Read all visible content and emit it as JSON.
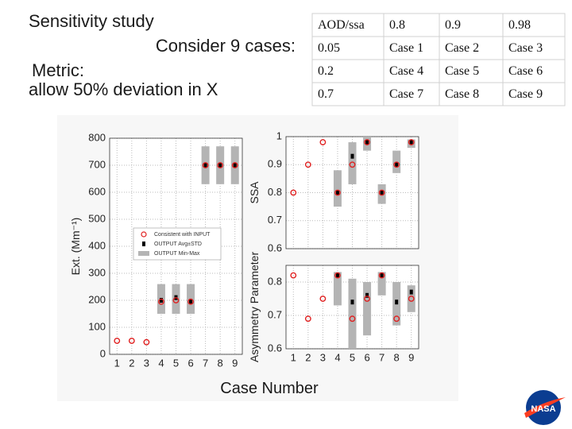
{
  "slide": {
    "title": "Sensitivity study",
    "subtitle": "Consider 9 cases:",
    "metric_label": "Metric:",
    "metric": "allow 50% deviation in X",
    "logo": "NASA"
  },
  "table": {
    "header": [
      "AOD/ssa",
      "0.8",
      "0.9",
      "0.98"
    ],
    "rows": [
      [
        "0.05",
        "Case 1",
        "Case 2",
        "Case 3"
      ],
      [
        "0.2",
        "Case 4",
        "Case 5",
        "Case 6"
      ],
      [
        "0.7",
        "Case 7",
        "Case 8",
        "Case 9"
      ]
    ]
  },
  "figure": {
    "xlabel": "Case Number"
  },
  "chart_data": [
    {
      "type": "box",
      "ylabel": "Ext. (Mm⁻¹)",
      "x": [
        1,
        2,
        3,
        4,
        5,
        6,
        7,
        8,
        9
      ],
      "xlim": [
        0.5,
        9.5
      ],
      "xticks": [
        1,
        2,
        3,
        4,
        5,
        6,
        7,
        8,
        9
      ],
      "ylim": [
        0,
        800
      ],
      "yticks": [
        0,
        100,
        200,
        300,
        400,
        500,
        600,
        700,
        800
      ],
      "grid": true,
      "legend": "center",
      "series": [
        {
          "name": "OUTPUT Min-Max",
          "color": "#b4b4b4",
          "low": [
            null,
            null,
            null,
            150,
            150,
            150,
            630,
            630,
            630
          ],
          "high": [
            null,
            null,
            null,
            260,
            260,
            260,
            770,
            770,
            770
          ]
        },
        {
          "name": "OUTPUT Avg±STD",
          "color": "#000000",
          "values": [
            null,
            null,
            null,
            200,
            210,
            195,
            700,
            700,
            700
          ]
        },
        {
          "name": "Consistent with INPUT",
          "color": "#e02020",
          "values": [
            50,
            50,
            45,
            195,
            200,
            195,
            700,
            700,
            700
          ]
        }
      ]
    },
    {
      "type": "box",
      "ylabel": "SSA",
      "x": [
        1,
        2,
        3,
        4,
        5,
        6,
        7,
        8,
        9
      ],
      "xlim": [
        0.5,
        9.5
      ],
      "ylim": [
        0.6,
        1
      ],
      "yticks": [
        0.6,
        0.7,
        0.8,
        0.9,
        1
      ],
      "grid": true,
      "series": [
        {
          "name": "OUTPUT Min-Max",
          "color": "#b4b4b4",
          "low": [
            null,
            null,
            null,
            0.75,
            0.83,
            0.95,
            0.76,
            0.87,
            0.96
          ],
          "high": [
            null,
            null,
            null,
            0.88,
            0.98,
            1,
            0.83,
            0.95,
            0.99
          ]
        },
        {
          "name": "OUTPUT Avg±STD",
          "color": "#000000",
          "values": [
            null,
            null,
            null,
            0.8,
            0.93,
            0.98,
            0.8,
            0.9,
            0.98
          ]
        },
        {
          "name": "Consistent with INPUT",
          "color": "#e02020",
          "values": [
            0.8,
            0.9,
            0.98,
            0.8,
            0.9,
            0.98,
            0.8,
            0.9,
            0.98
          ]
        }
      ]
    },
    {
      "type": "box",
      "ylabel": "Asymmetry Parameter",
      "x": [
        1,
        2,
        3,
        4,
        5,
        6,
        7,
        8,
        9
      ],
      "xlim": [
        0.5,
        9.5
      ],
      "xticks": [
        1,
        2,
        3,
        4,
        5,
        6,
        7,
        8,
        9
      ],
      "ylim": [
        0.6,
        0.85
      ],
      "yticks": [
        0.6,
        0.7,
        0.8
      ],
      "grid": true,
      "series": [
        {
          "name": "OUTPUT Min-Max",
          "color": "#b4b4b4",
          "low": [
            null,
            null,
            null,
            0.73,
            0.6,
            0.64,
            0.76,
            0.67,
            0.71
          ],
          "high": [
            null,
            null,
            null,
            0.83,
            0.81,
            0.8,
            0.83,
            0.8,
            0.79
          ]
        },
        {
          "name": "OUTPUT Avg±STD",
          "color": "#000000",
          "values": [
            null,
            null,
            null,
            0.82,
            0.74,
            0.76,
            0.82,
            0.74,
            0.77
          ]
        },
        {
          "name": "Consistent with INPUT",
          "color": "#e02020",
          "values": [
            0.82,
            0.69,
            0.75,
            0.82,
            0.69,
            0.75,
            0.82,
            0.69,
            0.75
          ]
        }
      ]
    }
  ]
}
